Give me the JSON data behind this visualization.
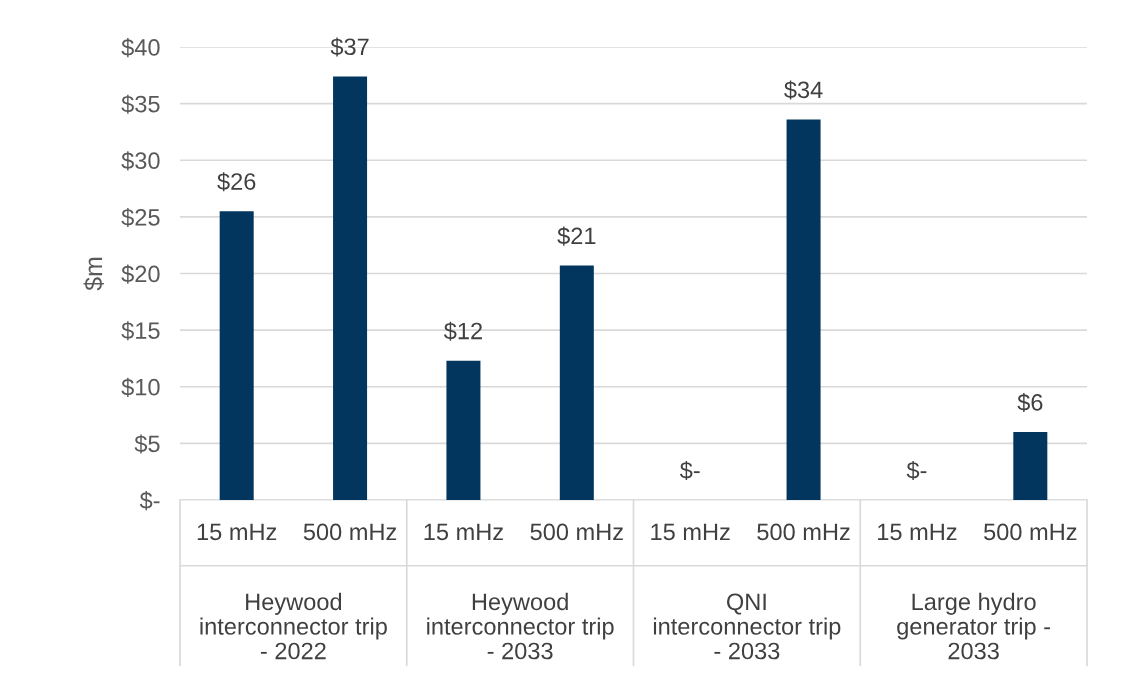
{
  "chart_data": {
    "type": "bar",
    "ylabel": "$m",
    "categories": [
      "15 mHz",
      "500 mHz",
      "15 mHz",
      "500 mHz",
      "15 mHz",
      "500 mHz",
      "15 mHz",
      "500 mHz"
    ],
    "values": [
      25.5,
      37.4,
      12.3,
      20.7,
      0,
      33.6,
      0,
      6.0
    ],
    "value_labels": [
      "$26",
      "$37",
      "$12",
      "$21",
      "$-",
      "$34",
      "$-",
      "$6"
    ],
    "color": "#02365e",
    "ylim": [
      0,
      40
    ],
    "yticks": [
      {
        "value": 0,
        "label": "$-"
      },
      {
        "value": 5,
        "label": "$5"
      },
      {
        "value": 10,
        "label": "$10"
      },
      {
        "value": 15,
        "label": "$15"
      },
      {
        "value": 20,
        "label": "$20"
      },
      {
        "value": 25,
        "label": "$25"
      },
      {
        "value": 30,
        "label": "$30"
      },
      {
        "value": 35,
        "label": "$35"
      },
      {
        "value": 40,
        "label": "$40"
      }
    ],
    "grid": "y",
    "annotations": [
      "Heywood\ninterconnector trip\n- 2022",
      "Heywood\ninterconnector trip\n- 2033",
      "QNI\ninterconnector trip\n- 2033",
      "Large hydro\ngenerator trip -\n2033"
    ]
  }
}
